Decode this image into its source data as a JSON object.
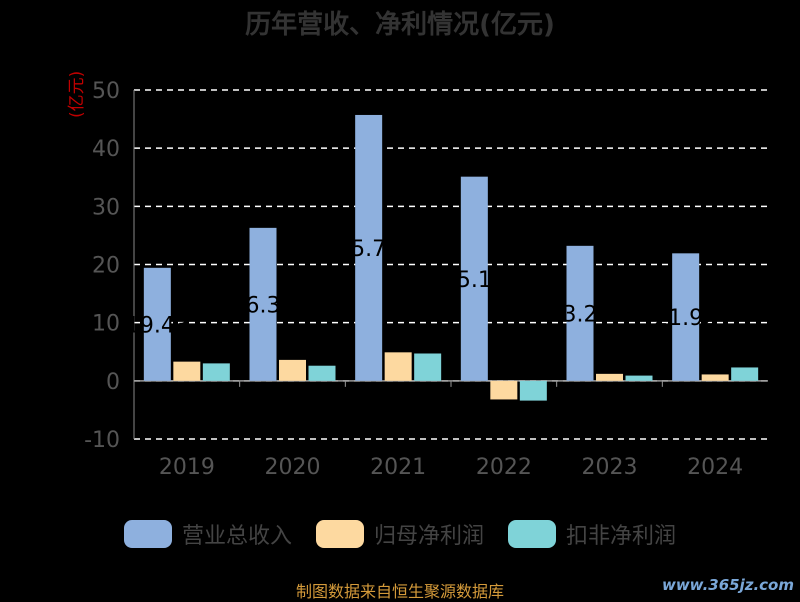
{
  "chart_data": {
    "type": "bar",
    "title": "历年营收、净利情况(亿元)",
    "ylabel": "(亿元)",
    "categories": [
      "2019",
      "2020",
      "2021",
      "2022",
      "2023",
      "2024"
    ],
    "ylim": [
      -10,
      50
    ],
    "yticks": [
      50,
      40,
      30,
      20,
      10,
      0,
      -10
    ],
    "grid": true,
    "legend_position": "bottom",
    "series": [
      {
        "name": "营业总收入",
        "color": "#8eb0de",
        "values": [
          19.43,
          26.3,
          45.71,
          35.1,
          23.21,
          21.92
        ]
      },
      {
        "name": "归母净利润",
        "color": "#fdd9a0",
        "values": [
          3.3,
          3.6,
          4.9,
          -3.2,
          1.2,
          1.1
        ]
      },
      {
        "name": "扣非净利润",
        "color": "#7fd3d8",
        "values": [
          3.0,
          2.6,
          4.7,
          -3.4,
          0.9,
          2.3
        ]
      }
    ],
    "data_labels_series0": [
      "19.43",
      "26.30",
      "45.71",
      "35.10",
      "23.21",
      "21.92"
    ]
  },
  "source_text": "制图数据来自恒生聚源数据库",
  "watermark_text": "www.365jz.com"
}
